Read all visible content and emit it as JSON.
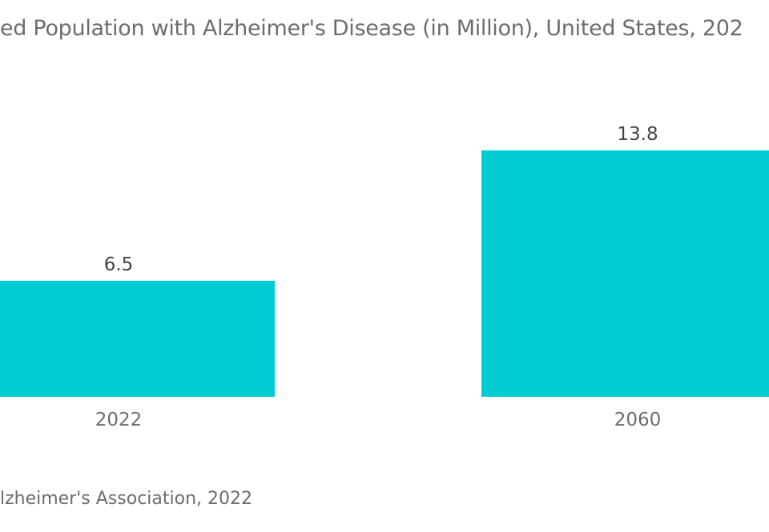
{
  "chart_data": {
    "type": "bar",
    "title": "ed Population with Alzheimer's Disease (in Million), United States, 202",
    "categories": [
      "2022",
      "2060"
    ],
    "values": [
      6.5,
      13.8
    ],
    "xlabel": "",
    "ylabel": "",
    "ylim": [
      0,
      20
    ],
    "bar_color": "#00cdd1",
    "grid": false,
    "legend": "none",
    "data_label_format": "0.0"
  },
  "source": "lzheimer's Association, 2022",
  "colors": {
    "bar": "#00cdd1",
    "text": "#6d6d6d",
    "label": "#444444"
  }
}
